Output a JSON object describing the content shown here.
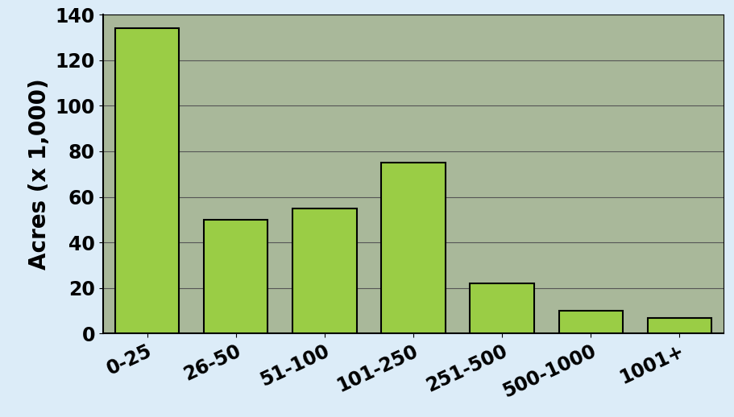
{
  "chart_data": {
    "type": "bar",
    "y_label": "Acres (x 1,000)",
    "categories": [
      "0-25",
      "26-50",
      "51-100",
      "101-250",
      "251-500",
      "500-1000",
      "1001+"
    ],
    "values": [
      134,
      50,
      55,
      75,
      22,
      10,
      7
    ],
    "color": "#9acd45",
    "ylim": [
      0,
      140
    ],
    "yticks": [
      0,
      20,
      40,
      60,
      80,
      100,
      120,
      140
    ],
    "grid": true
  }
}
